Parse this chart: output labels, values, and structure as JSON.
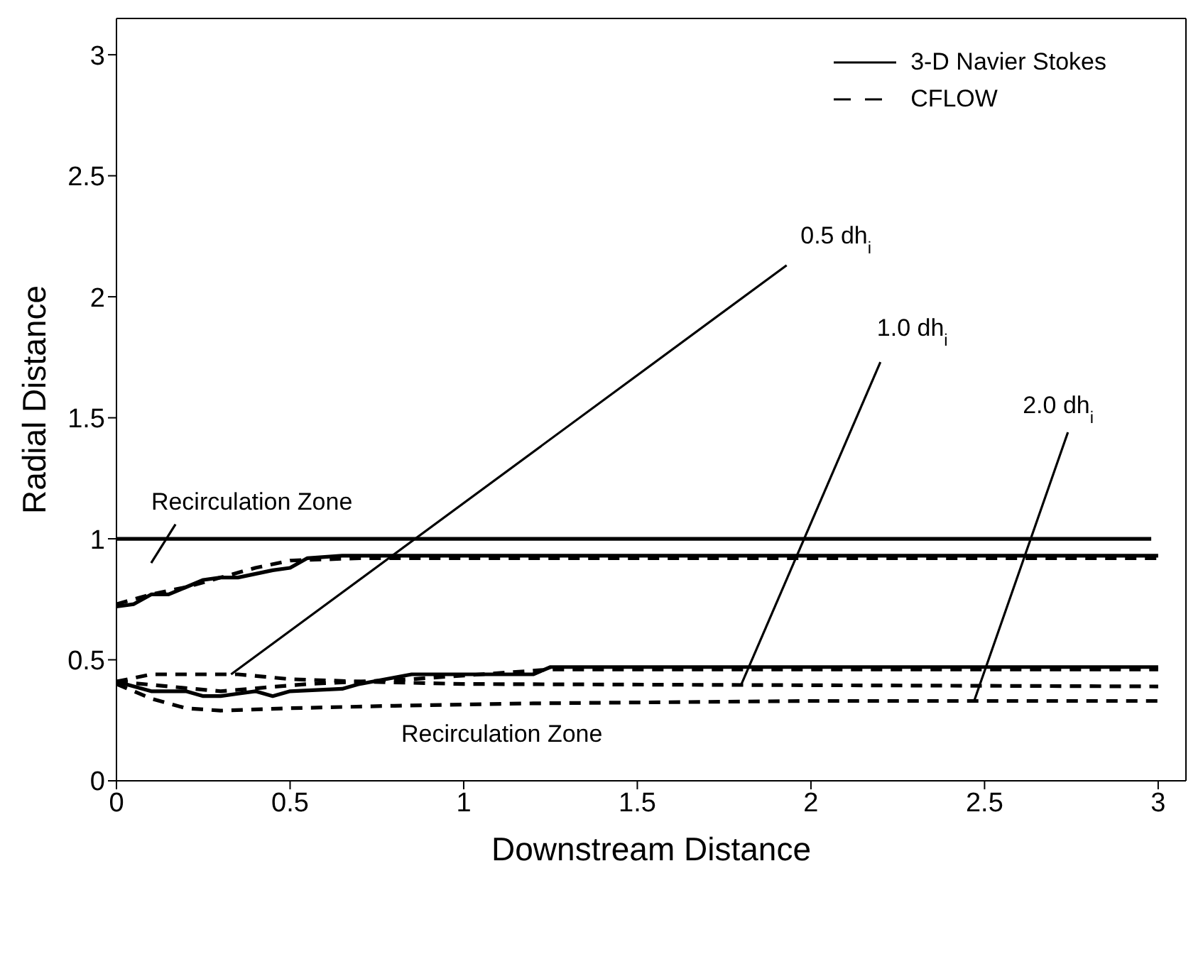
{
  "chart_data": {
    "type": "line",
    "xlabel": "Downstream Distance",
    "ylabel": "Radial Distance",
    "xlim": [
      0,
      3.08
    ],
    "ylim": [
      0,
      3.15
    ],
    "xticks": [
      0,
      0.5,
      1,
      1.5,
      2,
      2.5,
      3
    ],
    "yticks": [
      0,
      0.5,
      1,
      1.5,
      2,
      2.5,
      3
    ],
    "legend": "top right",
    "marker": "none",
    "series": [
      {
        "color": "#000000",
        "line_style": "solid",
        "x": [
          0,
          2.98
        ],
        "values": [
          1,
          1
        ]
      },
      {
        "name": "3-D Navier Stokes",
        "color": "#000000",
        "line_style": "solid",
        "x": [
          0,
          0.05,
          0.1,
          0.15,
          0.2,
          0.25,
          0.3,
          0.35,
          0.45,
          0.5,
          0.55,
          0.65,
          3
        ],
        "values": [
          0.72,
          0.73,
          0.77,
          0.77,
          0.8,
          0.83,
          0.84,
          0.84,
          0.87,
          0.88,
          0.92,
          0.93,
          0.93
        ]
      },
      {
        "color": "#000000",
        "line_style": "solid",
        "x": [
          0,
          0.05,
          0.1,
          0.2,
          0.25,
          0.3,
          0.35,
          0.4,
          0.45,
          0.5,
          0.65,
          0.7,
          0.85,
          1.2,
          1.25,
          3
        ],
        "values": [
          0.41,
          0.39,
          0.37,
          0.37,
          0.35,
          0.35,
          0.36,
          0.37,
          0.35,
          0.37,
          0.38,
          0.4,
          0.44,
          0.44,
          0.47,
          0.47
        ]
      },
      {
        "name": "CFLOW",
        "color": "#000000",
        "line_style": "dashed",
        "x": [
          0,
          0.1,
          0.2,
          0.3,
          0.4,
          0.5,
          0.7,
          3
        ],
        "values": [
          0.73,
          0.77,
          0.8,
          0.84,
          0.88,
          0.91,
          0.92,
          0.92
        ]
      },
      {
        "color": "#000000",
        "line_style": "dashed",
        "x": [
          0,
          0.3,
          0.55,
          0.85,
          1.25,
          3
        ],
        "values": [
          0.41,
          0.37,
          0.4,
          0.42,
          0.46,
          0.46
        ]
      },
      {
        "color": "#000000",
        "line_style": "dashed",
        "x": [
          0,
          0.1,
          0.2,
          0.35,
          0.5,
          0.7,
          1,
          3
        ],
        "values": [
          0.41,
          0.44,
          0.44,
          0.44,
          0.42,
          0.41,
          0.4,
          0.39
        ]
      },
      {
        "color": "#000000",
        "line_style": "dashed",
        "x": [
          0,
          0.1,
          0.2,
          0.3,
          0.5,
          0.8,
          1.2,
          2,
          3
        ],
        "values": [
          0.4,
          0.34,
          0.3,
          0.29,
          0.3,
          0.31,
          0.32,
          0.33,
          0.33
        ]
      }
    ],
    "annotations": [
      "Recirculation Zone",
      {
        "text": "0.5 dh$_{i}$",
        "x": 0.33,
        "y": 0.44
      },
      {
        "text": "1.0 dh$_{i}$",
        "x": 1.8,
        "y": 0.4
      },
      {
        "text": "2.0 dh$_{i}$",
        "x": 2.47,
        "y": 0.33
      },
      "Recirculation Zone"
    ]
  }
}
